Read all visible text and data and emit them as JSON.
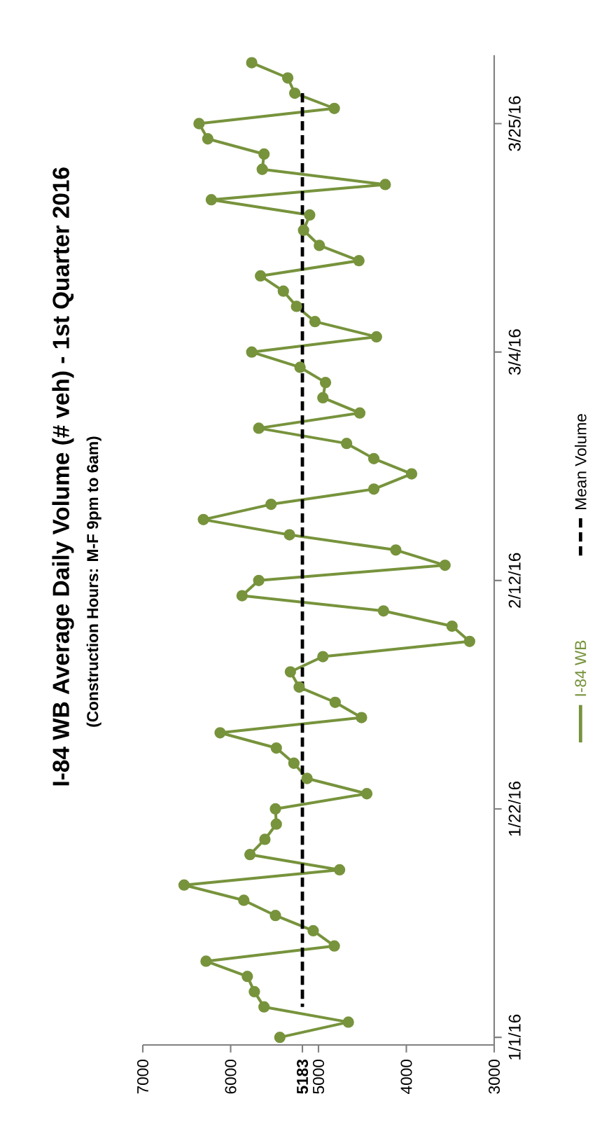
{
  "chart_data": {
    "type": "line",
    "title": "I-84 WB Average Daily Volume (# veh) - 1st Quarter 2016",
    "subtitle": "(Construction Hours: M-F 9pm to 6am)",
    "orientation": "horizontal",
    "categories": [
      null,
      null,
      null,
      null,
      "3/25/16",
      null,
      null,
      null,
      null,
      null,
      null,
      null,
      null,
      null,
      null,
      null,
      null,
      null,
      null,
      "3/4/16",
      null,
      null,
      null,
      null,
      null,
      null,
      null,
      null,
      null,
      null,
      null,
      null,
      null,
      null,
      "2/12/16",
      null,
      null,
      null,
      null,
      null,
      null,
      null,
      null,
      null,
      null,
      null,
      null,
      null,
      null,
      "1/22/16",
      null,
      null,
      null,
      null,
      null,
      null,
      null,
      null,
      null,
      null,
      null,
      null,
      null,
      null,
      "1/1/16"
    ],
    "series": [
      {
        "name": "I-84 WB",
        "color": "#77933c",
        "values": [
          5760,
          5350,
          5270,
          4820,
          6360,
          6260,
          5620,
          5640,
          4240,
          6220,
          5100,
          5170,
          4990,
          4540,
          5660,
          5400,
          5250,
          5040,
          4340,
          5760,
          5210,
          4920,
          4950,
          4530,
          5680,
          4680,
          4370,
          3940,
          4370,
          5540,
          6310,
          5330,
          4120,
          3560,
          5680,
          5870,
          4260,
          3480,
          3280,
          4950,
          5320,
          5220,
          4810,
          4510,
          6120,
          5480,
          5280,
          5130,
          4450,
          5490,
          5480,
          5610,
          5780,
          4760,
          6530,
          5850,
          5490,
          5060,
          4820,
          6280,
          5810,
          5730,
          5620,
          4660,
          5440
        ]
      }
    ],
    "xlim": [
      7000,
      3000
    ],
    "xticks": [
      7000,
      6000,
      5183,
      5000,
      4000,
      3000
    ],
    "ref_lines": [
      {
        "axis": "x",
        "value": 5183,
        "label": "Mean Volume",
        "color": "#000000",
        "line_style": "dashed"
      }
    ],
    "legend": "right",
    "marker": "circle",
    "line_style": "solid"
  }
}
